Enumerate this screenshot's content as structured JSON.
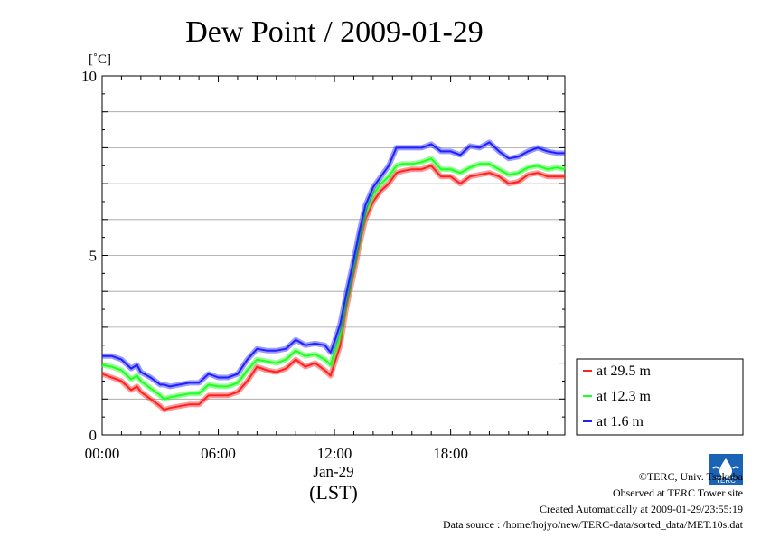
{
  "chart_data": {
    "type": "line",
    "title": "Dew Point / 2009-01-29",
    "ylabel": "[˚C]",
    "xlabel": "(LST)",
    "date_label": "Jan-29",
    "ylim": [
      0,
      10
    ],
    "xlim": [
      0,
      23.9
    ],
    "yticks": [
      0,
      5,
      10
    ],
    "xticks": [
      {
        "value": 0,
        "label": "00:00"
      },
      {
        "value": 6,
        "label": "06:00"
      },
      {
        "value": 12,
        "label": "12:00"
      },
      {
        "value": 18,
        "label": "18:00"
      }
    ],
    "grid": "horizontal, every 1 ˚C",
    "legend_position": "right-bottom",
    "x": [
      0,
      0.5,
      1,
      1.5,
      1.8,
      2,
      2.5,
      3,
      3.2,
      3.5,
      4,
      4.5,
      5,
      5.5,
      6,
      6.5,
      7,
      7.5,
      8,
      8.5,
      9,
      9.5,
      10,
      10.5,
      11,
      11.5,
      11.8,
      12,
      12.3,
      12.6,
      13,
      13.3,
      13.6,
      14,
      14.4,
      14.8,
      15.2,
      15.5,
      16,
      16.5,
      17,
      17.5,
      18,
      18.5,
      19,
      19.5,
      20,
      20.5,
      21,
      21.5,
      22,
      22.5,
      23,
      23.5,
      23.9
    ],
    "series": [
      {
        "name": "at 29.5 m",
        "color": "#ff2020",
        "values": [
          1.7,
          1.6,
          1.5,
          1.25,
          1.35,
          1.2,
          1.0,
          0.8,
          0.7,
          0.75,
          0.8,
          0.85,
          0.85,
          1.1,
          1.1,
          1.1,
          1.2,
          1.5,
          1.9,
          1.8,
          1.75,
          1.85,
          2.1,
          1.9,
          2.0,
          1.8,
          1.65,
          2.0,
          2.5,
          3.5,
          4.5,
          5.3,
          6.0,
          6.5,
          6.8,
          7.0,
          7.3,
          7.35,
          7.4,
          7.4,
          7.5,
          7.2,
          7.2,
          7.0,
          7.2,
          7.25,
          7.3,
          7.2,
          7.0,
          7.05,
          7.25,
          7.3,
          7.2,
          7.2,
          7.2
        ]
      },
      {
        "name": "at 12.3 m",
        "color": "#20ff20",
        "values": [
          1.95,
          1.9,
          1.8,
          1.55,
          1.65,
          1.5,
          1.3,
          1.1,
          1.0,
          1.05,
          1.1,
          1.15,
          1.15,
          1.4,
          1.35,
          1.35,
          1.45,
          1.8,
          2.1,
          2.05,
          2.0,
          2.1,
          2.35,
          2.2,
          2.25,
          2.1,
          1.95,
          2.3,
          2.8,
          3.7,
          4.7,
          5.5,
          6.2,
          6.7,
          7.0,
          7.2,
          7.5,
          7.55,
          7.55,
          7.6,
          7.7,
          7.4,
          7.4,
          7.3,
          7.45,
          7.55,
          7.55,
          7.4,
          7.25,
          7.3,
          7.45,
          7.5,
          7.4,
          7.45,
          7.4
        ]
      },
      {
        "name": "at 1.6 m",
        "color": "#2020ff",
        "values": [
          2.2,
          2.2,
          2.1,
          1.85,
          1.95,
          1.75,
          1.6,
          1.4,
          1.4,
          1.35,
          1.4,
          1.45,
          1.45,
          1.7,
          1.6,
          1.6,
          1.7,
          2.1,
          2.4,
          2.35,
          2.35,
          2.4,
          2.65,
          2.5,
          2.55,
          2.5,
          2.3,
          2.6,
          3.1,
          3.9,
          4.9,
          5.7,
          6.4,
          6.9,
          7.2,
          7.5,
          8.0,
          8.0,
          8.0,
          8.0,
          8.1,
          7.9,
          7.9,
          7.8,
          8.05,
          8.0,
          8.15,
          7.9,
          7.7,
          7.75,
          7.9,
          8.0,
          7.9,
          7.85,
          7.85
        ]
      }
    ]
  },
  "footer": {
    "copyright": "©TERC, Univ. Tsukuba",
    "observed": "Observed at TERC Tower site",
    "created": "Created Automatically at 2009-01-29/23:55:19",
    "source": "Data source : /home/hojyo/new/TERC-data/sorted_data/MET.10s.dat",
    "logo_text": "TERC"
  }
}
